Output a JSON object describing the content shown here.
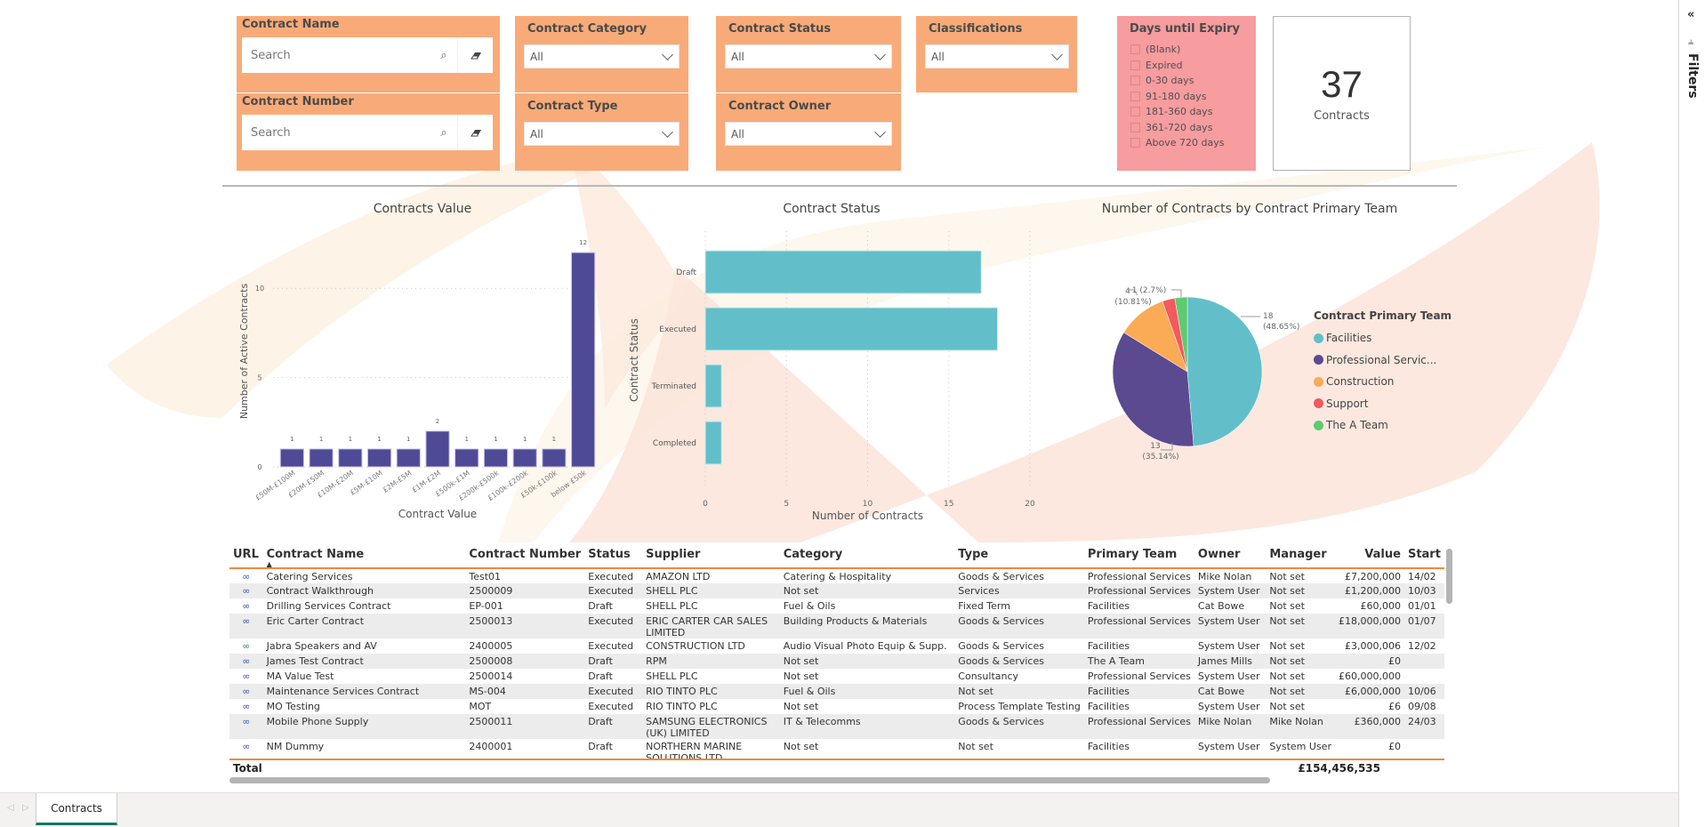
{
  "filters_pane": {
    "label": "Filters",
    "collapse_glyph": "«",
    "icon": "filter-icon"
  },
  "slicers": {
    "contract_name": {
      "title": "Contract Name",
      "placeholder": "Search"
    },
    "contract_number": {
      "title": "Contract Number",
      "placeholder": "Search"
    },
    "contract_category": {
      "title": "Contract Category",
      "value": "All"
    },
    "contract_type": {
      "title": "Contract Type",
      "value": "All"
    },
    "contract_status": {
      "title": "Contract Status",
      "value": "All"
    },
    "contract_owner": {
      "title": "Contract Owner",
      "value": "All"
    },
    "classifications": {
      "title": "Classifications",
      "value": "All"
    },
    "days_until_expiry": {
      "title": "Days until Expiry",
      "options": [
        "(Blank)",
        "Expired",
        "0-30 days",
        "91-180 days",
        "181-360 days",
        "361-720 days",
        "Above 720 days"
      ]
    }
  },
  "card": {
    "value": "37",
    "label": "Contracts"
  },
  "chart_data": [
    {
      "type": "bar",
      "title": "Contracts Value",
      "xlabel": "Contract Value",
      "ylabel": "Number of Active Contracts",
      "categories": [
        "£50M-£100M",
        "£20M-£50M",
        "£10M-£20M",
        "£5M-£10M",
        "£2M-£5M",
        "£1M-£2M",
        "£500k-£1M",
        "£200k-£500k",
        "£100k-£200k",
        "£50k-£100k",
        "below £50k"
      ],
      "values": [
        1,
        1,
        1,
        1,
        1,
        2,
        1,
        1,
        1,
        1,
        12
      ],
      "ylim": [
        0,
        12.6
      ],
      "yticks": [
        0,
        5,
        10
      ],
      "grid": true,
      "color": "#4f4a96"
    },
    {
      "type": "bar",
      "orientation": "horizontal",
      "title": "Contract Status",
      "xlabel": "Number of Contracts",
      "ylabel": "Contract Status",
      "categories": [
        "Draft",
        "Executed",
        "Terminated",
        "Completed"
      ],
      "values": [
        17,
        18,
        1,
        1
      ],
      "xlim": [
        0,
        20
      ],
      "xticks": [
        0,
        5,
        10,
        15,
        20
      ],
      "grid": true,
      "color": "#62bfc9"
    },
    {
      "type": "pie",
      "title": "Number of Contracts by Contract Primary Team",
      "legend_title": "Contract Primary Team",
      "legend_placement": "right",
      "slices": [
        {
          "label": "Facilities",
          "legend_label": "Facilities",
          "value": 18,
          "pct": "48.65%",
          "color": "#62bfc9"
        },
        {
          "label": "Professional Services",
          "legend_label": "Professional Servic...",
          "value": 13,
          "pct": "35.14%",
          "color": "#5b4a8f"
        },
        {
          "label": "Construction",
          "legend_label": "Construction",
          "value": 4,
          "pct": "10.81%",
          "color": "#fbaa56"
        },
        {
          "label": "Support",
          "legend_label": "Support",
          "value": 1,
          "pct": "2.7%",
          "color": "#f3595f"
        },
        {
          "label": "The A Team",
          "legend_label": "The A Team",
          "value": 1,
          "pct": "2.7%",
          "color": "#5ecb70"
        }
      ]
    }
  ],
  "table": {
    "columns": [
      "URL",
      "Contract Name",
      "Contract Number",
      "Status",
      "Supplier",
      "Category",
      "Type",
      "Primary Team",
      "Owner",
      "Manager",
      "Value",
      "Start"
    ],
    "sort_column": "Contract Name",
    "rows": [
      {
        "visited": false,
        "name": "Catering Services",
        "number": "Test01",
        "status": "Executed",
        "supplier": "AMAZON LTD",
        "category": "Catering & Hospitality",
        "type": "Goods & Services",
        "team": "Professional Services",
        "owner": "Mike Nolan",
        "manager": "Not set",
        "value": "£7,200,000",
        "start": "14/02"
      },
      {
        "visited": false,
        "name": "Contract Walkthrough",
        "number": "2500009",
        "status": "Executed",
        "supplier": "SHELL PLC",
        "category": "Not set",
        "type": "Services",
        "team": "Professional Services",
        "owner": "System User",
        "manager": "Not set",
        "value": "£1,200,000",
        "start": "10/03"
      },
      {
        "visited": false,
        "name": "Drilling Services Contract",
        "number": "EP-001",
        "status": "Draft",
        "supplier": "SHELL PLC",
        "category": "Fuel & Oils",
        "type": "Fixed Term",
        "team": "Facilities",
        "owner": "Cat Bowe",
        "manager": "Not set",
        "value": "£60,000",
        "start": "01/01"
      },
      {
        "visited": false,
        "name": "Eric Carter Contract",
        "number": "2500013",
        "status": "Executed",
        "supplier": "ERIC CARTER CAR SALES LIMITED",
        "category": "Building Products & Materials",
        "type": "Goods & Services",
        "team": "Professional Services",
        "owner": "System User",
        "manager": "Not set",
        "value": "£18,000,000",
        "start": "01/07"
      },
      {
        "visited": true,
        "name": "Jabra Speakers and AV",
        "number": "2400005",
        "status": "Executed",
        "supplier": "CONSTRUCTION LTD",
        "category": "Audio Visual Photo Equip & Supp.",
        "type": "Goods & Services",
        "team": "Facilities",
        "owner": "System User",
        "manager": "Not set",
        "value": "£3,000,006",
        "start": "12/02"
      },
      {
        "visited": false,
        "name": "James Test Contract",
        "number": "2500008",
        "status": "Draft",
        "supplier": "RPM",
        "category": "Not set",
        "type": "Goods & Services",
        "team": "The A Team",
        "owner": "James Mills",
        "manager": "Not set",
        "value": "£0",
        "start": ""
      },
      {
        "visited": false,
        "name": "MA Value Test",
        "number": "2500014",
        "status": "Draft",
        "supplier": "SHELL PLC",
        "category": "Not set",
        "type": "Consultancy",
        "team": "Professional Services",
        "owner": "System User",
        "manager": "Not set",
        "value": "£60,000,000",
        "start": ""
      },
      {
        "visited": false,
        "name": "Maintenance Services Contract",
        "number": "MS-004",
        "status": "Executed",
        "supplier": "RIO TINTO PLC",
        "category": "Fuel & Oils",
        "type": "Not set",
        "team": "Facilities",
        "owner": "Cat Bowe",
        "manager": "Not set",
        "value": "£6,000,000",
        "start": "10/06"
      },
      {
        "visited": false,
        "name": "MO Testing",
        "number": "MOT",
        "status": "Executed",
        "supplier": "RIO TINTO PLC",
        "category": "Not set",
        "type": "Process Template Testing",
        "team": "Facilities",
        "owner": "System User",
        "manager": "Not set",
        "value": "£6",
        "start": "09/08"
      },
      {
        "visited": false,
        "name": "Mobile Phone Supply",
        "number": "2500011",
        "status": "Draft",
        "supplier": "SAMSUNG ELECTRONICS (UK) LIMITED",
        "category": "IT & Telecomms",
        "type": "Goods & Services",
        "team": "Professional Services",
        "owner": "Mike Nolan",
        "manager": "Mike Nolan",
        "value": "£360,000",
        "start": "24/03"
      },
      {
        "visited": false,
        "name": "NM Dummy",
        "number": "2400001",
        "status": "Draft",
        "supplier": "NORTHERN MARINE SOLUTIONS LTD",
        "category": "Not set",
        "type": "Not set",
        "team": "Facilities",
        "owner": "System User",
        "manager": "System User",
        "value": "£0",
        "start": ""
      }
    ],
    "total_label": "Total",
    "total_value": "£154,456,535"
  },
  "bottom_bar": {
    "tabs": [
      {
        "label": "Contracts",
        "active": true
      }
    ]
  },
  "colors": {
    "slicer_bg": "#f8ab78",
    "expiry_bg": "#f79c9f",
    "accent_line": "#f08a3c",
    "active_tab": "#117865"
  }
}
